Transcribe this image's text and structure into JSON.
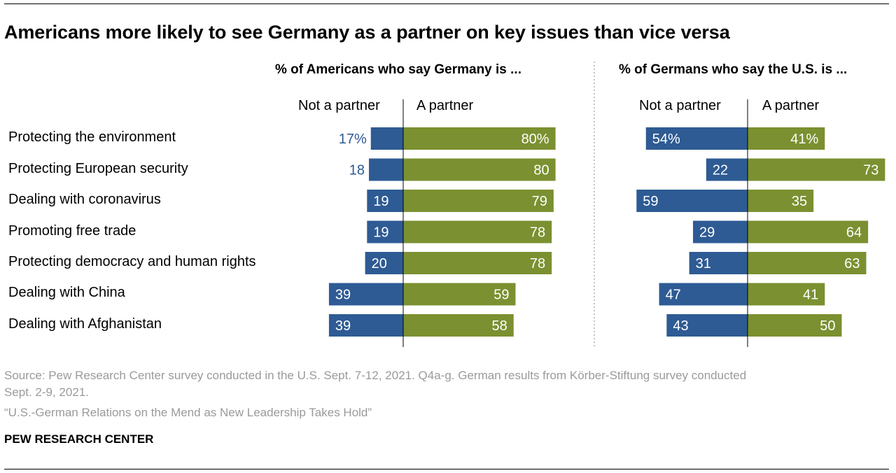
{
  "title": "Americans more likely to see Germany as a partner on key issues than vice versa",
  "colors": {
    "not_partner": "#2e5b94",
    "partner": "#7b9030",
    "first_label_outside": "#2e5b94"
  },
  "chart_data": [
    {
      "type": "bar",
      "orientation": "horizontal-diverging",
      "title": "% of Americans who say Germany is ...",
      "left_label": "Not a partner",
      "right_label": "A partner",
      "categories": [
        "Protecting the environment",
        "Protecting European security",
        "Dealing with coronavirus",
        "Promoting free trade",
        "Protecting democracy and human rights",
        "Dealing with China",
        "Dealing with Afghanistan"
      ],
      "series": [
        {
          "name": "Not a partner",
          "values": [
            17,
            18,
            19,
            19,
            20,
            39,
            39
          ],
          "labels": [
            "17%",
            "18",
            "19",
            "19",
            "20",
            "39",
            "39"
          ]
        },
        {
          "name": "A partner",
          "values": [
            80,
            80,
            79,
            78,
            78,
            59,
            58
          ],
          "labels": [
            "80%",
            "80",
            "79",
            "78",
            "78",
            "59",
            "58"
          ]
        }
      ]
    },
    {
      "type": "bar",
      "orientation": "horizontal-diverging",
      "title": "% of Germans who say the U.S. is ...",
      "left_label": "Not a partner",
      "right_label": "A partner",
      "categories": [
        "Protecting the environment",
        "Protecting European security",
        "Dealing with coronavirus",
        "Promoting free trade",
        "Protecting democracy and human rights",
        "Dealing with China",
        "Dealing with Afghanistan"
      ],
      "series": [
        {
          "name": "Not a partner",
          "values": [
            54,
            22,
            59,
            29,
            31,
            47,
            43
          ],
          "labels": [
            "54%",
            "22",
            "59",
            "29",
            "31",
            "47",
            "43"
          ]
        },
        {
          "name": "A partner",
          "values": [
            41,
            73,
            35,
            64,
            63,
            41,
            50
          ],
          "labels": [
            "41%",
            "73",
            "35",
            "64",
            "63",
            "41",
            "50"
          ]
        }
      ]
    }
  ],
  "source": {
    "line1": "Source: Pew Research Center survey conducted in the U.S. Sept. 7-12, 2021. Q4a-g. German results from Körber-Stiftung survey conducted",
    "line2": "Sept. 2-9, 2021.",
    "line3": "“U.S.-German Relations on the Mend as New Leadership Takes Hold”"
  },
  "org": "PEW RESEARCH CENTER"
}
